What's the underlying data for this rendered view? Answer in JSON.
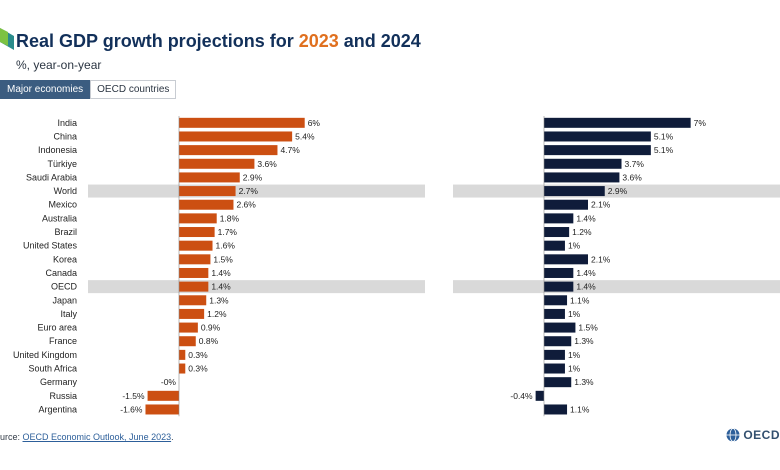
{
  "header": {
    "title_prefix": "Real GDP growth projections for ",
    "year1": "2023",
    "conjunction": " and ",
    "year2": "2024",
    "subtitle": "%, year-on-year"
  },
  "tabs": [
    {
      "label": "Major economies",
      "active": true
    },
    {
      "label": "OECD countries",
      "active": false
    }
  ],
  "footer": {
    "source_prefix": "urce: ",
    "source_link": "OECD Economic Outlook, June 2023",
    "source_suffix": ".",
    "logo_text": "OECD"
  },
  "colors": {
    "series_2023": "#cc4f12",
    "series_2024": "#0f1c3a",
    "highlight_row": "#d9d9d9",
    "title_accent": "#e0701f"
  },
  "chart_data": {
    "type": "bar",
    "orientation": "horizontal",
    "categories": [
      "India",
      "China",
      "Indonesia",
      "Türkiye",
      "Saudi Arabia",
      "World",
      "Mexico",
      "Australia",
      "Brazil",
      "United States",
      "Korea",
      "Canada",
      "OECD",
      "Japan",
      "Italy",
      "Euro area",
      "France",
      "United Kingdom",
      "South Africa",
      "Germany",
      "Russia",
      "Argentina"
    ],
    "highlighted_categories": [
      "World",
      "OECD"
    ],
    "series": [
      {
        "name": "2023",
        "values": [
          6,
          5.4,
          4.7,
          3.6,
          2.9,
          2.7,
          2.6,
          1.8,
          1.7,
          1.6,
          1.5,
          1.4,
          1.4,
          1.3,
          1.2,
          0.9,
          0.8,
          0.3,
          0.3,
          -0.0,
          -1.5,
          -1.6
        ],
        "labels": [
          "6%",
          "5.4%",
          "4.7%",
          "3.6%",
          "2.9%",
          "2.7%",
          "2.6%",
          "1.8%",
          "1.7%",
          "1.6%",
          "1.5%",
          "1.4%",
          "1.4%",
          "1.3%",
          "1.2%",
          "0.9%",
          "0.8%",
          "0.3%",
          "0.3%",
          "-0%",
          "-1.5%",
          "-1.6%"
        ]
      },
      {
        "name": "2024",
        "values": [
          7,
          5.1,
          5.1,
          3.7,
          3.6,
          2.9,
          2.1,
          1.4,
          1.2,
          1,
          2.1,
          1.4,
          1.4,
          1.1,
          1,
          1.5,
          1.3,
          1,
          1,
          1.3,
          -0.4,
          1.1
        ],
        "labels": [
          "7%",
          "5.1%",
          "5.1%",
          "3.7%",
          "3.6%",
          "2.9%",
          "2.1%",
          "1.4%",
          "1.2%",
          "1%",
          "2.1%",
          "1.4%",
          "1.4%",
          "1.1%",
          "1%",
          "1.5%",
          "1.3%",
          "1%",
          "1%",
          "1.3%",
          "-0.4%",
          "1.1%"
        ]
      }
    ]
  }
}
